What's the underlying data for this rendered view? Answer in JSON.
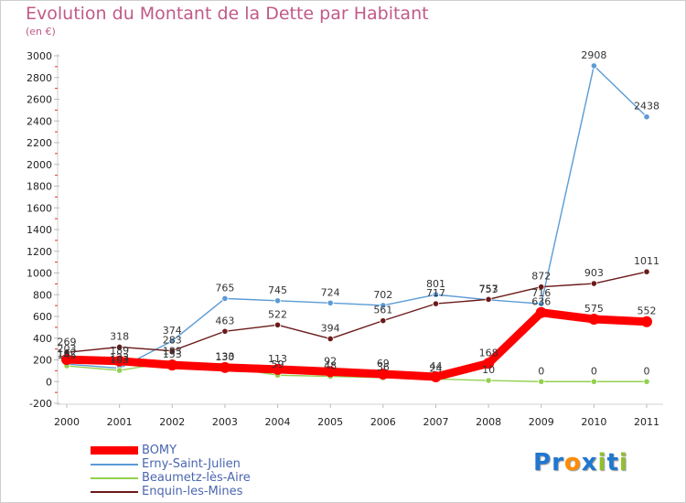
{
  "chart_data": {
    "type": "line",
    "title": "Evolution du Montant de la Dette par Habitant",
    "subtitle": "(en €)",
    "xlabel": "",
    "ylabel": "",
    "x": [
      "2000",
      "2001",
      "2002",
      "2003",
      "2004",
      "2005",
      "2006",
      "2007",
      "2008",
      "2009",
      "2010",
      "2011"
    ],
    "ylim": [
      -200,
      3000
    ],
    "yticks": [
      -200,
      0,
      200,
      400,
      600,
      800,
      1000,
      1200,
      1400,
      1600,
      1800,
      2000,
      2200,
      2400,
      2600,
      2800,
      3000
    ],
    "grid": false,
    "legend_position": "bottom-left",
    "series": [
      {
        "name": "BOMY",
        "color": "#ff0000",
        "values": [
          203,
          189,
          153,
          130,
          113,
          92,
          69,
          44,
          168,
          636,
          575,
          552
        ],
        "labels": [
          "203",
          "189",
          "153",
          "130",
          "113",
          "92",
          "69",
          "44",
          "168",
          "636",
          "575",
          "552"
        ]
      },
      {
        "name": "Erny-Saint-Julien",
        "color": "#5b9bd5",
        "values": [
          162,
          123,
          374,
          765,
          745,
          724,
          702,
          801,
          753,
          716,
          2908,
          2438
        ],
        "labels": [
          "162",
          "123",
          "374",
          "765",
          "745",
          "724",
          "702",
          "801",
          "753",
          "716",
          "2908",
          "2438"
        ]
      },
      {
        "name": "Beaumetz-lès-Aire",
        "color": "#92d050",
        "values": [
          145,
          103,
          183,
          133,
          59,
          48,
          36,
          24,
          10,
          0,
          0,
          0
        ],
        "labels": [
          "145",
          "103",
          "183",
          "133",
          "59",
          "48",
          "36",
          "24",
          "10",
          "0",
          "0",
          "0"
        ]
      },
      {
        "name": "Enquin-les-Mines",
        "color": "#6b1a1a",
        "values": [
          269,
          318,
          283,
          463,
          522,
          394,
          561,
          717,
          757,
          872,
          903,
          1011
        ],
        "labels": [
          "269",
          "318",
          "283",
          "463",
          "522",
          "394",
          "561",
          "717",
          "757",
          "872",
          "903",
          "1011"
        ]
      }
    ]
  },
  "brand": {
    "letters": [
      "P",
      "r",
      "o",
      "x",
      "i",
      "t",
      "i"
    ],
    "colors": [
      "#1f77d0",
      "#1f77d0",
      "#ff8c00",
      "#1f77d0",
      "#90c030",
      "#1f77d0",
      "#90c030"
    ]
  }
}
